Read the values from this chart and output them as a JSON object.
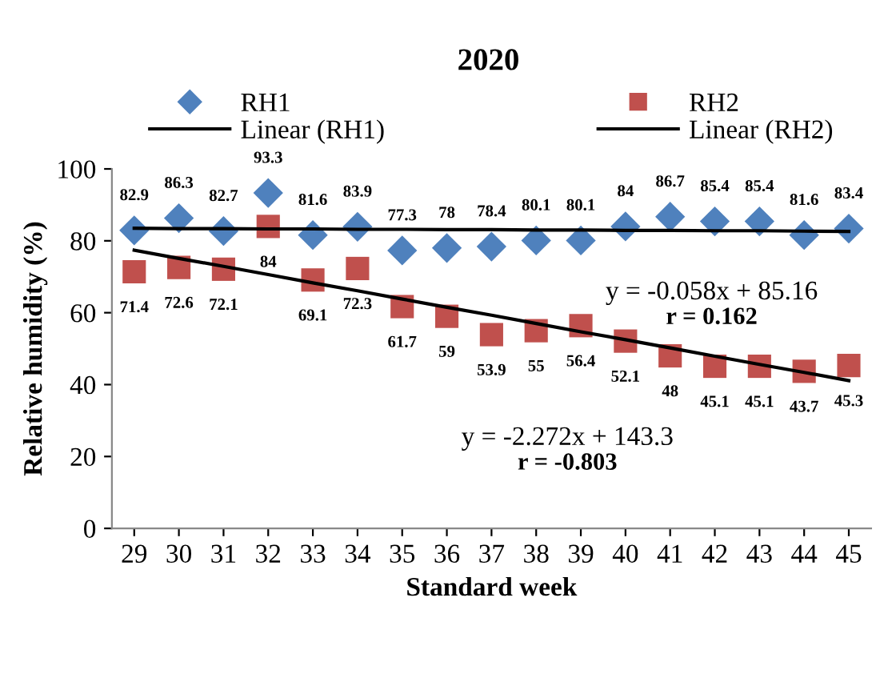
{
  "chart_data": {
    "type": "scatter",
    "title": "2020",
    "xlabel": "Standard week",
    "ylabel": "Relative humidity (%)",
    "x": [
      29,
      30,
      31,
      32,
      33,
      34,
      35,
      36,
      37,
      38,
      39,
      40,
      41,
      42,
      43,
      44,
      45
    ],
    "series": [
      {
        "name": "RH1",
        "color": "#4f81bd",
        "marker": "diamond",
        "values": [
          82.9,
          86.3,
          82.7,
          93.3,
          81.6,
          83.9,
          77.3,
          78,
          78.4,
          80.1,
          80.1,
          84,
          86.7,
          85.4,
          85.4,
          81.6,
          83.4
        ],
        "value_labels": [
          "82.9",
          "86.3",
          "82.7",
          "93.3",
          "81.6",
          "83.9",
          "77.3",
          "78",
          "78.4",
          "80.1",
          "80.1",
          "84",
          "86.7",
          "85.4",
          "85.4",
          "81.6",
          "83.4"
        ]
      },
      {
        "name": "Linear (RH1)",
        "type": "line",
        "color": "#000000",
        "values": [
          83.5,
          83.4,
          83.4,
          83.3,
          83.3,
          83.2,
          83.2,
          83.1,
          83.1,
          83.0,
          83.0,
          82.9,
          82.9,
          82.8,
          82.8,
          82.7,
          82.6
        ]
      },
      {
        "name": "RH2",
        "color": "#c0504d",
        "marker": "square",
        "values": [
          71.4,
          72.6,
          72.1,
          84,
          69.1,
          72.3,
          61.7,
          59,
          53.9,
          55,
          56.4,
          52.1,
          48,
          45.1,
          45.1,
          43.7,
          45.3
        ],
        "value_labels": [
          "71.4",
          "72.6",
          "72.1",
          "84",
          "69.1",
          "72.3",
          "61.7",
          "59",
          "53.9",
          "55",
          "56.4",
          "52.1",
          "48",
          "45.1",
          "45.1",
          "43.7",
          "45.3"
        ]
      },
      {
        "name": "Linear (RH2)",
        "type": "line",
        "color": "#000000",
        "values": [
          77.4,
          75.1,
          72.9,
          70.6,
          68.3,
          66.1,
          63.8,
          61.5,
          59.3,
          57.0,
          54.7,
          52.5,
          50.2,
          47.9,
          45.6,
          43.4,
          41.1
        ]
      }
    ],
    "xlim": [
      28.5,
      45.5
    ],
    "xticks": [
      29,
      30,
      31,
      32,
      33,
      34,
      35,
      36,
      37,
      38,
      39,
      40,
      41,
      42,
      43,
      44,
      45
    ],
    "ylim": [
      0,
      100
    ],
    "yticks": [
      0,
      20,
      40,
      60,
      80,
      100
    ],
    "grid": false,
    "legend": "top",
    "annotations": [
      "y = -0.058x + 85.16",
      "r = 0.162",
      "y = -2.272x + 143.3",
      "r = -0.803"
    ]
  }
}
